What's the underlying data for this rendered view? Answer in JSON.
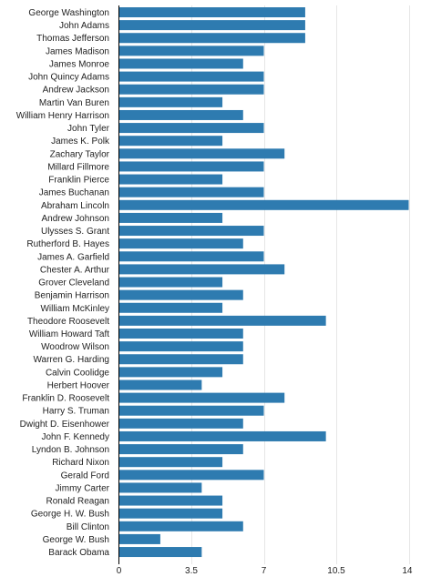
{
  "chart_data": {
    "type": "bar",
    "orientation": "horizontal",
    "title": "",
    "xlabel": "",
    "ylabel": "",
    "xlim": [
      0,
      14
    ],
    "x_ticks": [
      0,
      3.5,
      7,
      10.5,
      14
    ],
    "x_tick_labels": [
      "0",
      "3.5",
      "7",
      "10.5",
      "14"
    ],
    "grid": "vertical",
    "legend": "none",
    "bar_color": "#2e7bb0",
    "grid_color": "#e6e6e6",
    "axis_color": "#000000",
    "categories": [
      "George Washington",
      "John Adams",
      "Thomas Jefferson",
      "James Madison",
      "James Monroe",
      "John Quincy Adams",
      "Andrew Jackson",
      "Martin Van Buren",
      "William Henry Harrison",
      "John Tyler",
      "James K. Polk",
      "Zachary Taylor",
      "Millard Fillmore",
      "Franklin Pierce",
      "James Buchanan",
      "Abraham Lincoln",
      "Andrew Johnson",
      "Ulysses S. Grant",
      "Rutherford B. Hayes",
      "James A. Garfield",
      "Chester A. Arthur",
      "Grover Cleveland",
      "Benjamin Harrison",
      "William McKinley",
      "Theodore Roosevelt",
      "William Howard Taft",
      "Woodrow Wilson",
      "Warren G. Harding",
      "Calvin Coolidge",
      "Herbert Hoover",
      "Franklin D. Roosevelt",
      "Harry S. Truman",
      "Dwight D. Eisenhower",
      "John F. Kennedy",
      "Lyndon B. Johnson",
      "Richard Nixon",
      "Gerald Ford",
      "Jimmy Carter",
      "Ronald Reagan",
      "George H. W. Bush",
      "Bill Clinton",
      "George W. Bush",
      "Barack Obama"
    ],
    "values": [
      9,
      9,
      9,
      7,
      6,
      7,
      7,
      5,
      6,
      7,
      5,
      8,
      7,
      5,
      7,
      14,
      5,
      7,
      6,
      7,
      8,
      5,
      6,
      5,
      10,
      6,
      6,
      6,
      5,
      4,
      8,
      7,
      6,
      10,
      6,
      5,
      7,
      4,
      5,
      5,
      6,
      2,
      4
    ]
  }
}
